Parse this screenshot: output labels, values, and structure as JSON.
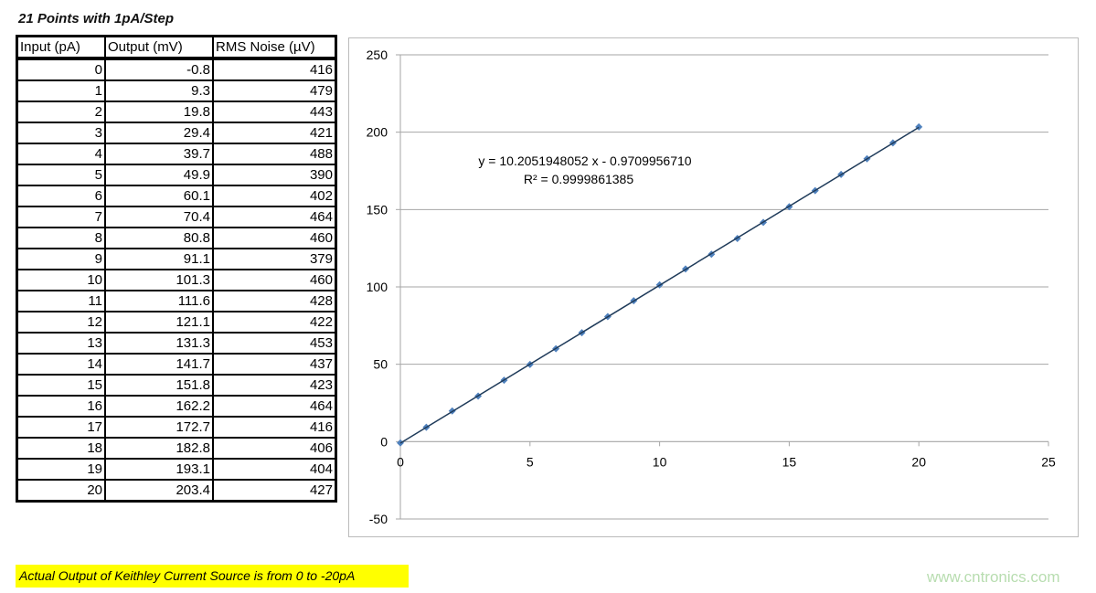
{
  "title": "21 Points with 1pA/Step",
  "table": {
    "headers": [
      "Input (pA)",
      "Output (mV)",
      "RMS Noise (µV)"
    ],
    "rows": [
      [
        "0",
        "-0.8",
        "416"
      ],
      [
        "1",
        "9.3",
        "479"
      ],
      [
        "2",
        "19.8",
        "443"
      ],
      [
        "3",
        "29.4",
        "421"
      ],
      [
        "4",
        "39.7",
        "488"
      ],
      [
        "5",
        "49.9",
        "390"
      ],
      [
        "6",
        "60.1",
        "402"
      ],
      [
        "7",
        "70.4",
        "464"
      ],
      [
        "8",
        "80.8",
        "460"
      ],
      [
        "9",
        "91.1",
        "379"
      ],
      [
        "10",
        "101.3",
        "460"
      ],
      [
        "11",
        "111.6",
        "428"
      ],
      [
        "12",
        "121.1",
        "422"
      ],
      [
        "13",
        "131.3",
        "453"
      ],
      [
        "14",
        "141.7",
        "437"
      ],
      [
        "15",
        "151.8",
        "423"
      ],
      [
        "16",
        "162.2",
        "464"
      ],
      [
        "17",
        "172.7",
        "416"
      ],
      [
        "18",
        "182.8",
        "406"
      ],
      [
        "19",
        "193.1",
        "404"
      ],
      [
        "20",
        "203.4",
        "427"
      ]
    ]
  },
  "chart_data": {
    "type": "scatter",
    "x": [
      0,
      1,
      2,
      3,
      4,
      5,
      6,
      7,
      8,
      9,
      10,
      11,
      12,
      13,
      14,
      15,
      16,
      17,
      18,
      19,
      20
    ],
    "y": [
      -0.8,
      9.3,
      19.8,
      29.4,
      39.7,
      49.9,
      60.1,
      70.4,
      80.8,
      91.1,
      101.3,
      111.6,
      121.1,
      131.3,
      141.7,
      151.8,
      162.2,
      172.7,
      182.8,
      193.1,
      203.4
    ],
    "xlim": [
      0,
      25
    ],
    "ylim": [
      -50,
      250
    ],
    "xticks": [
      "0",
      "5",
      "10",
      "15",
      "20",
      "25"
    ],
    "yticks": [
      "-50",
      "0",
      "50",
      "100",
      "150",
      "200",
      "250"
    ],
    "trendline": {
      "slope": 10.2051948052,
      "intercept": -0.970995671
    },
    "equation": "y = 10.2051948052 x - 0.9709956710",
    "r2": "R² = 0.9999861385",
    "grid": true,
    "colors": {
      "marker": "#4f81bd",
      "trendline": "#1f3b5a",
      "grid": "#a6a6a6"
    }
  },
  "note": "Actual Output of Keithley Current Source is from 0 to -20pA",
  "watermark": "www.cntronics.com"
}
